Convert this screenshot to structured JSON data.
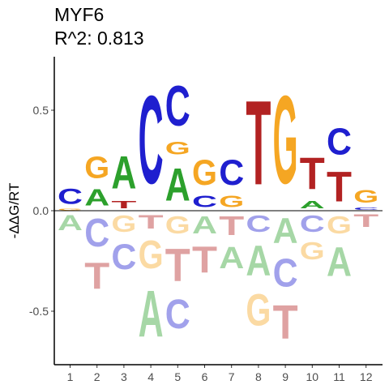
{
  "chart_data": {
    "type": "sequence-logo",
    "title": "MYF6",
    "subtitle": "R^2: 0.813",
    "xlabel": "",
    "ylabel": "-ΔΔG/RT",
    "ylim": [
      -0.75,
      0.75
    ],
    "y_ticks": [
      {
        "value": 0.5,
        "label": "0.5"
      },
      {
        "value": 0.0,
        "label": "0.0"
      },
      {
        "value": -0.5,
        "label": "-0.5"
      }
    ],
    "positions": [
      1,
      2,
      3,
      4,
      5,
      6,
      7,
      8,
      9,
      10,
      11,
      12
    ],
    "colors": {
      "A": "#2ca02c",
      "C": "#1f1fcf",
      "G": "#f5a623",
      "T": "#b22222"
    },
    "letters": [
      {
        "pos": 1,
        "above": [
          {
            "base": "G",
            "v": 0.01
          },
          {
            "base": "C",
            "v": 0.12
          }
        ],
        "below": [
          {
            "base": "A",
            "v": 0.12
          }
        ]
      },
      {
        "pos": 2,
        "above": [
          {
            "base": "A",
            "v": 0.13
          },
          {
            "base": "G",
            "v": 0.17
          }
        ],
        "below": [
          {
            "base": "C",
            "v": 0.22
          },
          {
            "base": "T",
            "v": 0.21
          }
        ]
      },
      {
        "pos": 3,
        "above": [
          {
            "base": "T",
            "v": 0.06
          },
          {
            "base": "A",
            "v": 0.26
          }
        ],
        "below": [
          {
            "base": "G",
            "v": 0.13
          },
          {
            "base": "C",
            "v": 0.2
          }
        ]
      },
      {
        "pos": 4,
        "above": [
          {
            "base": "C",
            "v": 0.7
          }
        ],
        "below": [
          {
            "base": "T",
            "v": 0.11
          },
          {
            "base": "G",
            "v": 0.22
          },
          {
            "base": "A",
            "v": 0.37
          }
        ]
      },
      {
        "pos": 5,
        "above": [
          {
            "base": "A",
            "v": 0.26
          },
          {
            "base": "G",
            "v": 0.1
          },
          {
            "base": "C",
            "v": 0.32
          }
        ],
        "below": [
          {
            "base": "G",
            "v": 0.14
          },
          {
            "base": "T",
            "v": 0.26
          },
          {
            "base": "C",
            "v": 0.23
          }
        ]
      },
      {
        "pos": 6,
        "above": [
          {
            "base": "C",
            "v": 0.09
          },
          {
            "base": "G",
            "v": 0.2
          }
        ],
        "below": [
          {
            "base": "A",
            "v": 0.14
          },
          {
            "base": "T",
            "v": 0.21
          }
        ]
      },
      {
        "pos": 7,
        "above": [
          {
            "base": "G",
            "v": 0.09
          },
          {
            "base": "C",
            "v": 0.2
          }
        ],
        "below": [
          {
            "base": "T",
            "v": 0.15
          },
          {
            "base": "A",
            "v": 0.17
          }
        ]
      },
      {
        "pos": 8,
        "above": [
          {
            "base": "T",
            "v": 0.67
          }
        ],
        "below": [
          {
            "base": "C",
            "v": 0.13
          },
          {
            "base": "A",
            "v": 0.24
          },
          {
            "base": "G",
            "v": 0.25
          }
        ]
      },
      {
        "pos": 9,
        "above": [
          {
            "base": "G",
            "v": 0.7
          }
        ],
        "below": [
          {
            "base": "A",
            "v": 0.2
          },
          {
            "base": "C",
            "v": 0.22
          },
          {
            "base": "T",
            "v": 0.27
          }
        ]
      },
      {
        "pos": 10,
        "above": [
          {
            "base": "A",
            "v": 0.06
          },
          {
            "base": "T",
            "v": 0.25
          }
        ],
        "below": [
          {
            "base": "C",
            "v": 0.13
          },
          {
            "base": "G",
            "v": 0.14
          }
        ]
      },
      {
        "pos": 11,
        "above": [
          {
            "base": "T",
            "v": 0.24
          },
          {
            "base": "C",
            "v": 0.21
          }
        ],
        "below": [
          {
            "base": "G",
            "v": 0.14
          },
          {
            "base": "A",
            "v": 0.23
          }
        ]
      },
      {
        "pos": 12,
        "above": [
          {
            "base": "C",
            "v": 0.02
          },
          {
            "base": "G",
            "v": 0.1
          }
        ],
        "below": [
          {
            "base": "T",
            "v": 0.1
          }
        ]
      }
    ]
  }
}
